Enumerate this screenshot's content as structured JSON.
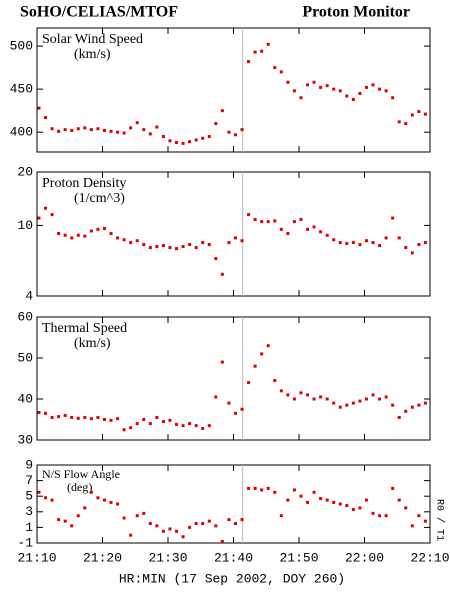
{
  "header": {
    "title_left": "SoHO/CELIAS/MTOF",
    "title_right": "Proton Monitor",
    "side_label": "R0 / T1"
  },
  "xaxis": {
    "label": "HR:MIN (17 Sep 2002, DOY 260)",
    "xlim": [
      1270,
      1330
    ],
    "vline_x": 1301.4,
    "xticks": [
      {
        "value": 1270,
        "label": "21:10"
      },
      {
        "value": 1280,
        "label": "21:20"
      },
      {
        "value": 1290,
        "label": "21:30"
      },
      {
        "value": 1300,
        "label": "21:40"
      },
      {
        "value": 1310,
        "label": "21:50"
      },
      {
        "value": 1320,
        "label": "22:00"
      },
      {
        "value": 1330,
        "label": "22:10"
      }
    ]
  },
  "chart_data": [
    {
      "type": "scatter",
      "title": "Solar Wind Speed",
      "units": "(km/s)",
      "color": "#e00000",
      "ylim": [
        377,
        521
      ],
      "yticks": [
        400,
        450,
        500
      ],
      "x": [
        1270.3,
        1271.3,
        1272.3,
        1273.3,
        1274.3,
        1275.3,
        1276.3,
        1277.3,
        1278.3,
        1279.3,
        1280.3,
        1281.3,
        1282.3,
        1283.3,
        1284.3,
        1285.3,
        1286.3,
        1287.3,
        1288.3,
        1289.3,
        1290.3,
        1291.3,
        1292.3,
        1293.3,
        1294.3,
        1295.3,
        1296.3,
        1297.3,
        1298.3,
        1299.3,
        1300.3,
        1301.3,
        1302.3,
        1303.3,
        1304.3,
        1305.3,
        1306.3,
        1307.3,
        1308.3,
        1309.3,
        1310.3,
        1311.3,
        1312.3,
        1313.3,
        1314.3,
        1315.3,
        1316.3,
        1317.3,
        1318.3,
        1319.3,
        1320.3,
        1321.3,
        1322.3,
        1323.3,
        1324.3,
        1325.3,
        1326.3,
        1327.3,
        1328.3,
        1329.3
      ],
      "values": [
        428,
        417,
        404,
        401,
        403,
        402,
        404,
        405,
        403,
        404,
        402,
        401,
        400,
        399,
        405,
        411,
        403,
        398,
        406,
        395,
        390,
        388,
        387,
        389,
        391,
        393,
        395,
        410,
        425,
        400,
        397,
        403,
        482,
        493,
        494,
        502,
        475,
        470,
        458,
        448,
        440,
        455,
        458,
        452,
        454,
        450,
        448,
        442,
        438,
        445,
        452,
        455,
        450,
        448,
        440,
        412,
        410,
        420,
        424,
        421
      ]
    },
    {
      "type": "scatter",
      "title": "Proton Density",
      "units": "(1/cm^3)",
      "color": "#e00000",
      "log": true,
      "ylim": [
        4,
        20
      ],
      "yticks": [
        4,
        10,
        20
      ],
      "x": [
        1270.3,
        1271.3,
        1272.3,
        1273.3,
        1274.3,
        1275.3,
        1276.3,
        1277.3,
        1278.3,
        1279.3,
        1280.3,
        1281.3,
        1282.3,
        1283.3,
        1284.3,
        1285.3,
        1286.3,
        1287.3,
        1288.3,
        1289.3,
        1290.3,
        1291.3,
        1292.3,
        1293.3,
        1294.3,
        1295.3,
        1296.3,
        1297.3,
        1298.3,
        1299.3,
        1300.3,
        1301.3,
        1302.3,
        1303.3,
        1304.3,
        1305.3,
        1306.3,
        1307.3,
        1308.3,
        1309.3,
        1310.3,
        1311.3,
        1312.3,
        1313.3,
        1314.3,
        1315.3,
        1316.3,
        1317.3,
        1318.3,
        1319.3,
        1320.3,
        1321.3,
        1322.3,
        1323.3,
        1324.3,
        1325.3,
        1326.3,
        1327.3,
        1328.3,
        1329.3
      ],
      "values": [
        11,
        12.5,
        11.5,
        9,
        8.8,
        8.5,
        8.8,
        8.7,
        9.3,
        9.5,
        9.6,
        9,
        8.5,
        8.3,
        8,
        8.2,
        7.8,
        7.5,
        7.6,
        7.7,
        7.5,
        7.4,
        7.6,
        7.8,
        7.5,
        8,
        7.8,
        6.5,
        5.3,
        8,
        8.5,
        8.2,
        11.5,
        10.8,
        10.5,
        10.5,
        10.6,
        9.5,
        9,
        10.5,
        10.8,
        9.5,
        9.8,
        9.2,
        8.8,
        8.3,
        8,
        7.9,
        8,
        7.8,
        8.2,
        8,
        7.7,
        8.5,
        11,
        8.5,
        7.5,
        7,
        7.8,
        8
      ]
    },
    {
      "type": "scatter",
      "title": "Thermal Speed",
      "units": "(km/s)",
      "color": "#e00000",
      "ylim": [
        30,
        60
      ],
      "yticks": [
        30,
        40,
        50,
        60
      ],
      "x": [
        1270.3,
        1271.3,
        1272.3,
        1273.3,
        1274.3,
        1275.3,
        1276.3,
        1277.3,
        1278.3,
        1279.3,
        1280.3,
        1281.3,
        1282.3,
        1283.3,
        1284.3,
        1285.3,
        1286.3,
        1287.3,
        1288.3,
        1289.3,
        1290.3,
        1291.3,
        1292.3,
        1293.3,
        1294.3,
        1295.3,
        1296.3,
        1297.3,
        1298.3,
        1299.3,
        1300.3,
        1301.3,
        1302.3,
        1303.3,
        1304.3,
        1305.3,
        1306.3,
        1307.3,
        1308.3,
        1309.3,
        1310.3,
        1311.3,
        1312.3,
        1313.3,
        1314.3,
        1315.3,
        1316.3,
        1317.3,
        1318.3,
        1319.3,
        1320.3,
        1321.3,
        1322.3,
        1323.3,
        1324.3,
        1325.3,
        1326.3,
        1327.3,
        1328.3,
        1329.3
      ],
      "values": [
        36.7,
        36.5,
        35.5,
        35.7,
        36,
        35.5,
        35.3,
        35.5,
        35.2,
        35.5,
        35,
        34.8,
        35.2,
        32.5,
        33,
        34,
        35,
        34,
        35.5,
        34.5,
        34.8,
        33.8,
        33.5,
        34,
        33.5,
        32.8,
        33.5,
        40.5,
        49,
        39,
        36.5,
        37.5,
        44,
        48,
        51,
        53,
        44.5,
        42,
        41,
        40,
        41.5,
        41,
        40,
        40.5,
        40,
        39,
        38,
        38.5,
        39,
        39.5,
        40,
        41,
        40,
        40.5,
        38.5,
        35.5,
        37,
        38,
        38.5,
        39
      ]
    },
    {
      "type": "scatter",
      "title": "N/S Flow Angle",
      "units": "(deg)",
      "color": "#e00000",
      "ylim": [
        -1,
        9
      ],
      "yticks": [
        -1,
        1,
        3,
        5,
        7,
        9
      ],
      "x": [
        1270.3,
        1271.3,
        1272.3,
        1273.3,
        1274.3,
        1275.3,
        1276.3,
        1277.3,
        1278.3,
        1279.3,
        1280.3,
        1281.3,
        1282.3,
        1283.3,
        1284.3,
        1285.3,
        1286.3,
        1287.3,
        1288.3,
        1289.3,
        1290.3,
        1291.3,
        1292.3,
        1293.3,
        1294.3,
        1295.3,
        1296.3,
        1297.3,
        1298.3,
        1299.3,
        1300.3,
        1301.3,
        1302.3,
        1303.3,
        1304.3,
        1305.3,
        1306.3,
        1307.3,
        1308.3,
        1309.3,
        1310.3,
        1311.3,
        1312.3,
        1313.3,
        1314.3,
        1315.3,
        1316.3,
        1317.3,
        1318.3,
        1319.3,
        1320.3,
        1321.3,
        1322.3,
        1323.3,
        1324.3,
        1325.3,
        1326.3,
        1327.3,
        1328.3,
        1329.3
      ],
      "values": [
        5.5,
        4.8,
        4.5,
        2,
        1.8,
        1.2,
        2.5,
        3.5,
        5.5,
        4.8,
        4.5,
        4.2,
        4,
        2.2,
        0,
        2.5,
        2.8,
        1.5,
        1.2,
        0.5,
        0.8,
        0.5,
        -0.2,
        1,
        1.5,
        1.5,
        1.8,
        1.2,
        -0.8,
        2,
        1.5,
        2,
        6,
        6,
        5.8,
        6,
        5.5,
        2.5,
        4.5,
        5.8,
        5,
        4.2,
        5.5,
        4.7,
        4.5,
        4.2,
        4,
        3.8,
        3.3,
        3.5,
        4.5,
        2.8,
        2.5,
        2.5,
        6,
        4.5,
        3.5,
        1.2,
        2.5,
        1.8
      ]
    }
  ]
}
